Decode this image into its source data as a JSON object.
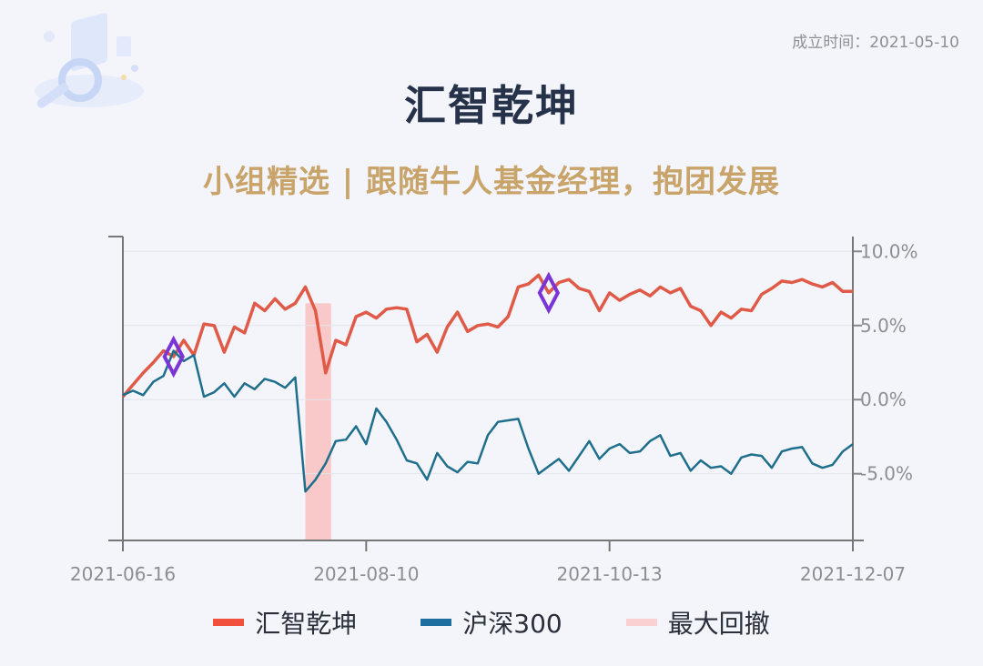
{
  "header": {
    "date_label": "成立时间：2021-05-10",
    "title": "汇智乾坤",
    "subtitle": "小组精选 | 跟随牛人基金经理，抱团发展"
  },
  "colors": {
    "fund": "#e05a48",
    "index": "#1f6e8c",
    "drawdown": "#f9c8c8",
    "marker": "#7b35d6",
    "title": "#26324a",
    "subtitle": "#c9a46a"
  },
  "legend": [
    {
      "label": "汇智乾坤",
      "color": "#f0503c"
    },
    {
      "label": "沪深300",
      "color": "#1f6ea0"
    },
    {
      "label": "最大回撤",
      "color": "#fbd0d0"
    }
  ],
  "chart_data": {
    "type": "line",
    "x_ticks": [
      "2021-06-16",
      "2021-08-10",
      "2021-10-13",
      "2021-12-07"
    ],
    "y_ticks": [
      "10.0%",
      "5.0%",
      "0.0%",
      "-5.0%"
    ],
    "ylim": [
      -9.5,
      11
    ],
    "series": [
      {
        "name": "汇智乾坤",
        "values": [
          0.2,
          1.0,
          1.8,
          2.5,
          3.3,
          2.9,
          4.0,
          3.0,
          5.1,
          5.0,
          3.2,
          4.9,
          4.5,
          6.5,
          6.0,
          6.8,
          6.1,
          6.5,
          7.6,
          6.0,
          1.8,
          4.0,
          3.7,
          5.6,
          5.9,
          5.5,
          6.1,
          6.2,
          6.1,
          3.9,
          4.4,
          3.2,
          4.9,
          5.9,
          4.6,
          5.0,
          5.1,
          4.9,
          5.6,
          7.6,
          7.8,
          8.4,
          7.2,
          7.9,
          8.1,
          7.5,
          7.3,
          6.0,
          7.2,
          6.7,
          7.1,
          7.4,
          7.0,
          7.6,
          7.2,
          7.5,
          6.3,
          6.0,
          5.0,
          5.9,
          5.5,
          6.1,
          6.0,
          7.1,
          7.5,
          8.0,
          7.9,
          8.1,
          7.8,
          7.6,
          7.9,
          7.3,
          7.3
        ]
      },
      {
        "name": "沪深300",
        "values": [
          0.3,
          0.6,
          0.3,
          1.2,
          1.6,
          3.3,
          2.6,
          3.0,
          0.2,
          0.5,
          1.1,
          0.2,
          1.1,
          0.7,
          1.4,
          1.2,
          0.8,
          1.5,
          -6.2,
          -5.4,
          -4.3,
          -2.8,
          -2.7,
          -1.8,
          -3.0,
          -0.6,
          -1.5,
          -2.7,
          -4.1,
          -4.3,
          -5.4,
          -3.6,
          -4.5,
          -4.9,
          -4.2,
          -4.3,
          -2.4,
          -1.5,
          -1.4,
          -1.3,
          -3.3,
          -5.0,
          -4.5,
          -4.0,
          -4.8,
          -3.8,
          -2.8,
          -4.0,
          -3.3,
          -3.0,
          -3.6,
          -3.5,
          -2.8,
          -2.4,
          -3.8,
          -3.6,
          -4.8,
          -4.1,
          -4.6,
          -4.5,
          -5.0,
          -3.9,
          -3.7,
          -3.8,
          -4.6,
          -3.5,
          -3.3,
          -3.2,
          -4.3,
          -4.6,
          -4.4,
          -3.5,
          -3.0
        ]
      }
    ],
    "max_drawdown_range": [
      18,
      20
    ],
    "markers": [
      {
        "series": 0,
        "index": 5
      },
      {
        "series": 0,
        "index": 42
      }
    ]
  }
}
